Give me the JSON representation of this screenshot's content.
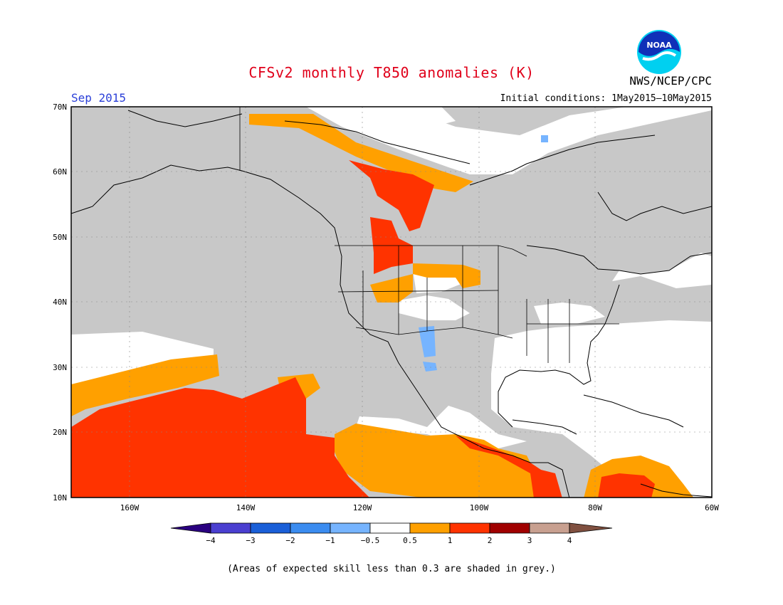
{
  "header": {
    "title": "CFSv2 monthly T850 anomalies (K)",
    "month": "Sep 2015",
    "agency": "NWS/NCEP/CPC",
    "initial_conditions": "Initial conditions: 1May2015–10May2015",
    "logo_text": "NOAA"
  },
  "map": {
    "lat_labels": [
      "70N",
      "60N",
      "50N",
      "40N",
      "30N",
      "20N",
      "10N"
    ],
    "lon_labels": [
      "160W",
      "140W",
      "120W",
      "100W",
      "80W",
      "60W"
    ],
    "colors": {
      "skill_grey": "#c8c8c8",
      "land_white": "#ffffff",
      "orange": "#ffa000",
      "red_orange": "#ff3300",
      "light_blue": "#76b4ff",
      "coast": "#000000"
    }
  },
  "colorbar": {
    "labels": [
      "−4",
      "−3",
      "−2",
      "−1",
      "−0.5",
      "0.5",
      "1",
      "2",
      "3",
      "4"
    ],
    "colors": [
      "#2a0080",
      "#4a3fd0",
      "#1a5fd8",
      "#3b8cf0",
      "#76b4ff",
      "#ffffff",
      "#ffa000",
      "#ff3300",
      "#a00000",
      "#c8a090",
      "#805040"
    ]
  },
  "footer": {
    "note": "(Areas of expected skill less than 0.3 are shaded in grey.)"
  }
}
